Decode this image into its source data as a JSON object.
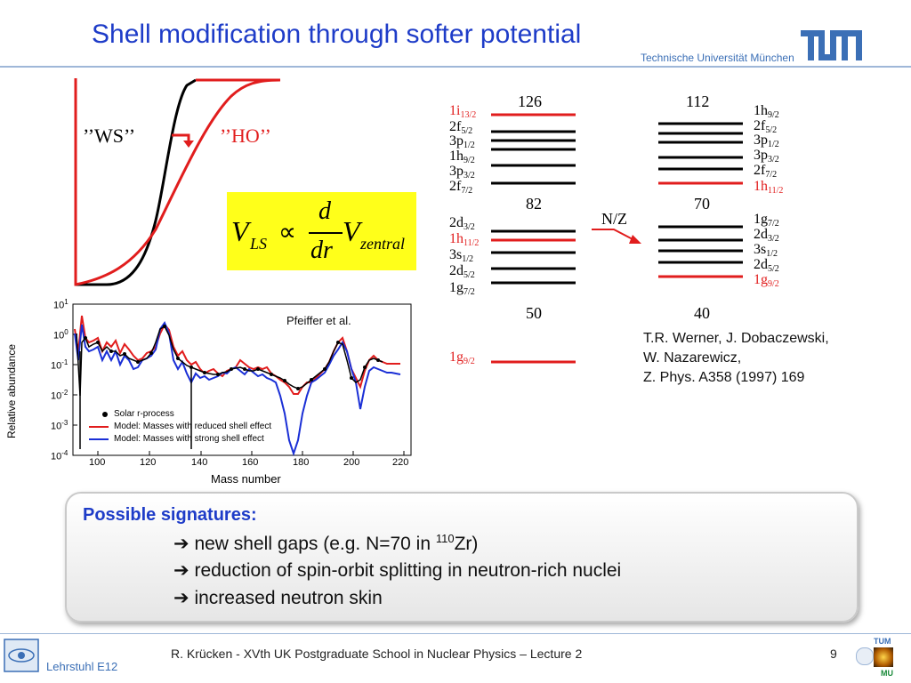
{
  "title": "Shell modification through softer potential",
  "university": "Technische Universität München",
  "logo_text": "TUM",
  "potential": {
    "ws_label": "’’WS’’",
    "ho_label": "’’HO’’"
  },
  "formula": {
    "v": "V",
    "ls": "LS",
    "propto": "∝",
    "d_num": "d",
    "d_den": "dr",
    "v2": "V",
    "zentral": "zentral"
  },
  "abundance_plot": {
    "annotation": "Pfeiffer et al.",
    "ylabel": "Relative abundance",
    "xlabel": "Mass number",
    "x_ticks": [
      "100",
      "120",
      "140",
      "160",
      "180",
      "200",
      "220"
    ],
    "y_ticks": [
      "1",
      "0",
      "-1",
      "-2",
      "-3",
      "-4"
    ],
    "y_tick_base": "10",
    "legend": [
      {
        "label": "Solar r-process",
        "color": "#000000"
      },
      {
        "label": "Model: Masses with reduced shell effect",
        "color": "#e11d1d"
      },
      {
        "label": "Model: Masses with strong shell effect",
        "color": "#1a2fd6"
      }
    ]
  },
  "levels_left": {
    "top_magic": "126",
    "mid_magic": "82",
    "low_magic": "50",
    "upper_group": [
      {
        "n": "1i",
        "sub": "13/2",
        "red": true
      },
      {
        "n": "2f",
        "sub": "5/2",
        "red": false
      },
      {
        "n": "3p",
        "sub": "1/2",
        "red": false
      },
      {
        "n": "1h",
        "sub": "9/2",
        "red": false
      },
      {
        "n": "3p",
        "sub": "3/2",
        "red": false
      },
      {
        "n": "2f",
        "sub": "7/2",
        "red": false
      }
    ],
    "lower_group": [
      {
        "n": "2d",
        "sub": "3/2",
        "red": false
      },
      {
        "n": "1h",
        "sub": "11/2",
        "red": true
      },
      {
        "n": "3s",
        "sub": "1/2",
        "red": false
      },
      {
        "n": "2d",
        "sub": "5/2",
        "red": false
      },
      {
        "n": "1g",
        "sub": "7/2",
        "red": false
      }
    ],
    "bottom": {
      "n": "1g",
      "sub": "9/2",
      "red": true
    }
  },
  "arrow_label": "N/Z",
  "levels_right": {
    "top_magic": "112",
    "mid_magic": "70",
    "low_magic": "40",
    "upper_group": [
      {
        "n": "1h",
        "sub": "9/2",
        "red": false
      },
      {
        "n": "2f",
        "sub": "5/2",
        "red": false
      },
      {
        "n": "3p",
        "sub": "1/2",
        "red": false
      },
      {
        "n": "3p",
        "sub": "3/2",
        "red": false
      },
      {
        "n": "2f",
        "sub": "7/2",
        "red": false
      },
      {
        "n": "1h",
        "sub": "11/2",
        "red": true
      }
    ],
    "lower_group": [
      {
        "n": "1g",
        "sub": "7/2",
        "red": false
      },
      {
        "n": "2d",
        "sub": "3/2",
        "red": false
      },
      {
        "n": "3s",
        "sub": "1/2",
        "red": false
      },
      {
        "n": "2d",
        "sub": "5/2",
        "red": false
      },
      {
        "n": "1g",
        "sub": "9/2",
        "red": true
      }
    ]
  },
  "reference": {
    "line1": "T.R. Werner, J. Dobaczewski,",
    "line2": "W. Nazarewicz,",
    "line3": "Z. Phys. A358 (1997) 169"
  },
  "signatures": {
    "heading": "Possible signatures:",
    "arrow": "➔",
    "item1_pre": "new shell gaps (e.g. N=70 in ",
    "item1_sup": "110",
    "item1_post": "Zr)",
    "item2": "reduction of spin-orbit splitting in neutron-rich nuclei",
    "item3": "increased neutron skin"
  },
  "footer": {
    "chair": "Lehrstuhl E12",
    "center": "R. Krücken   -   XVth UK Postgraduate School in Nuclear Physics – Lecture 2",
    "page": "9",
    "logo_small": "TUM",
    "logo_mu": "MU"
  },
  "colors": {
    "title_blue": "#1e3cc8",
    "red": "#e11d1d",
    "blue": "#1a2fd6",
    "formula_bg": "#ffff1a"
  }
}
